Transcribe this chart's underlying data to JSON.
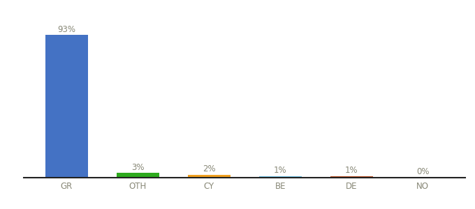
{
  "categories": [
    "GR",
    "OTH",
    "CY",
    "BE",
    "DE",
    "NO"
  ],
  "values": [
    93,
    3,
    2,
    1,
    1,
    0
  ],
  "bar_colors": [
    "#4472c4",
    "#2eaa1e",
    "#f0a020",
    "#6bbce0",
    "#b84c20",
    "#aaaaaa"
  ],
  "bar_labels": [
    "93%",
    "3%",
    "2%",
    "1%",
    "1%",
    "0%"
  ],
  "ylim": [
    0,
    105
  ],
  "background_color": "#ffffff",
  "label_fontsize": 8.5,
  "tick_fontsize": 8.5,
  "bar_width": 0.6
}
